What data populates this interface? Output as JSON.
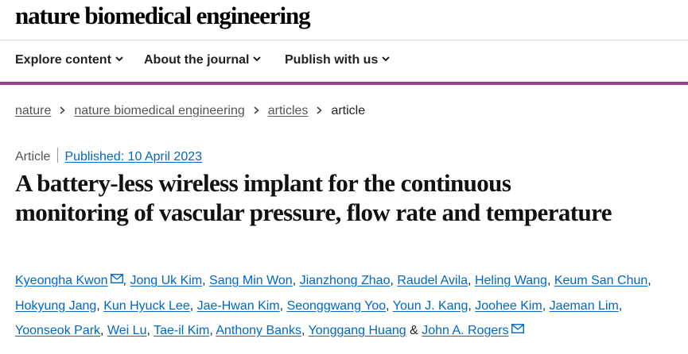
{
  "site": {
    "journal_name": "nature biomedical engineering"
  },
  "nav": {
    "items": [
      {
        "label": "Explore content"
      },
      {
        "label": "About the journal"
      },
      {
        "label": "Publish with us"
      }
    ]
  },
  "breadcrumb": {
    "items": [
      "nature",
      "nature biomedical engineering",
      "articles"
    ],
    "current": "article"
  },
  "article": {
    "type": "Article",
    "published": "Published: 10 April 2023",
    "title": "A battery-less wireless implant for the continuous monitoring of vascular pressure, flow rate and temperature",
    "authors": [
      "Kyeongha Kwon",
      "Jong Uk Kim",
      "Sang Min Won",
      "Jianzhong Zhao",
      "Raudel Avila",
      "Heling Wang",
      "Keum San Chun",
      "Hokyung Jang",
      "Kun Hyuck Lee",
      "Jae-Hwan Kim",
      "Seonggwang Yoo",
      "Youn J. Kang",
      "Joohee Kim",
      "Jaeman Lim",
      "Yoonseok Park",
      "Wei Lu",
      "Tae-il Kim",
      "Anthony Banks",
      "Yonggang Huang",
      "John A. Rogers"
    ],
    "last_separator": "&",
    "separator": ",",
    "link_color": "#0067c5",
    "accent_color": "#9b3f8c"
  }
}
